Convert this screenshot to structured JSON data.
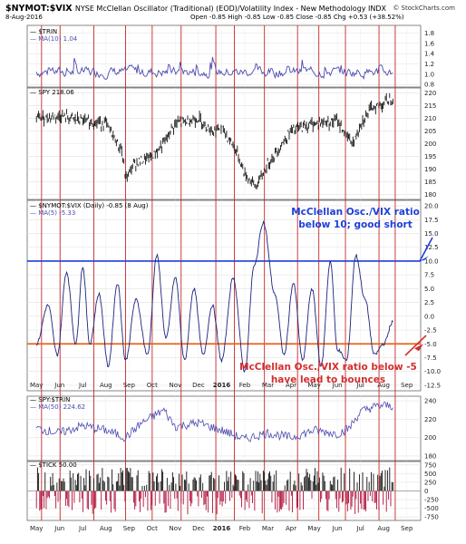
{
  "header": {
    "symbol": "$NYMOT:$VIX",
    "description": "NYSE McClellan Oscillator (Traditional) (EOD)/Volatility Index - New Methodology  INDX",
    "credit": "© StockCharts.com",
    "date": "8-Aug-2016",
    "ohlc": "Open -0.85  High -0.85  Low -0.85  Close -0.85  Chg +0.53 (+38.52%)"
  },
  "colors": {
    "price_line": "#1a237e",
    "ma_line": "#4b4bb0",
    "vline": "#c62828",
    "blue_level": "#1f3fd8",
    "orange_level": "#e8651b",
    "blue_text": "#1f3fd8",
    "red_text": "#d32f2f",
    "tick_pos": "#111111",
    "tick_neg": "#b0103a"
  },
  "x_axis_labels": [
    "May",
    "Jun",
    "Jul",
    "Aug",
    "Sep",
    "Oct",
    "Nov",
    "Dec",
    "2016",
    "Feb",
    "Mar",
    "Apr",
    "May",
    "Jun",
    "Jul",
    "Aug",
    "Sep"
  ],
  "vlines_month_index": [
    0.22,
    1.02,
    2.48,
    3.85,
    5.0,
    6.25,
    7.75,
    8.55,
    9.85,
    11.28,
    12.2,
    13.35,
    14.8,
    15.5
  ],
  "annotations": {
    "top": [
      "McClellan Osc./VIX ratio",
      "below 10; good short"
    ],
    "bottom": [
      "McClellan Osc./VIX ratio below -5",
      "have lead to bounces"
    ]
  },
  "chart_data": [
    {
      "type": "line",
      "legend": [
        "$TRIN",
        "MA(10) 1.04"
      ],
      "yticks": [
        "0.8",
        "1.0",
        "1.2",
        "1.4",
        "1.6",
        "1.8"
      ],
      "ylim": [
        0.75,
        1.95
      ],
      "ma_level": 1.04
    },
    {
      "type": "line",
      "legend": [
        "SPY 218.06"
      ],
      "yticks": [
        "180",
        "185",
        "190",
        "195",
        "200",
        "205",
        "210",
        "215",
        "220"
      ],
      "ylim": [
        178,
        222
      ],
      "x": [
        0,
        1,
        2,
        3,
        3.7,
        3.85,
        4.2,
        5,
        5.5,
        6,
        7,
        7.6,
        8,
        8.6,
        9,
        9.5,
        10,
        11,
        12,
        13,
        13.4,
        13.7,
        14,
        14.5,
        15,
        15.4
      ],
      "values": [
        210,
        211,
        209,
        208,
        197,
        186,
        192,
        195,
        200,
        208,
        210,
        205,
        206,
        198,
        188,
        183,
        192,
        205,
        208,
        209,
        203,
        200,
        208,
        214,
        216,
        218
      ]
    },
    {
      "type": "line",
      "legend": [
        "$NYMOT:$VIX (Daily) -0.85 (8 Aug)",
        "MA(5) -5.33"
      ],
      "yticks": [
        "20.0",
        "17.5",
        "15.0",
        "12.5",
        "10.0",
        "7.5",
        "5.0",
        "2.5",
        "0.0",
        "-2.5",
        "-5.0",
        "-7.5",
        "-10.0",
        "-12.5"
      ],
      "ylim": [
        -13.5,
        21
      ],
      "levels": [
        10,
        -5
      ],
      "x": [
        0,
        0.5,
        0.9,
        1.3,
        1.7,
        2.0,
        2.3,
        2.7,
        3.1,
        3.5,
        3.85,
        4.3,
        4.8,
        5.2,
        5.6,
        6.0,
        6.4,
        6.8,
        7.2,
        7.6,
        8.0,
        8.5,
        9.0,
        9.4,
        9.8,
        10.3,
        10.7,
        11.1,
        11.5,
        11.9,
        12.3,
        12.7,
        13.0,
        13.4,
        13.8,
        14.2,
        14.6,
        15.0,
        15.4
      ],
      "values": [
        -5,
        2,
        -7,
        8,
        -5,
        9,
        -5,
        4,
        -9,
        6,
        -8,
        3,
        -7,
        11,
        -4,
        7,
        -8,
        5,
        -7,
        2,
        -8,
        7,
        -10,
        9,
        17,
        4,
        -7,
        6,
        -8,
        5,
        -9,
        10,
        -6,
        -8,
        11,
        3,
        -7,
        -5,
        -1
      ]
    },
    {
      "type": "line",
      "legend": [
        "SPY:$TRIN",
        "MA(50) 224.62"
      ],
      "yticks": [
        "180",
        "200",
        "220",
        "240"
      ],
      "ylim": [
        175,
        245
      ],
      "x": [
        0,
        1,
        2,
        3,
        3.85,
        4.5,
        5.5,
        6,
        7,
        8,
        9,
        9.5,
        10,
        11,
        12,
        13,
        13.5,
        14,
        14.5,
        15,
        15.4
      ],
      "values": [
        210,
        205,
        213,
        208,
        200,
        215,
        230,
        212,
        216,
        208,
        198,
        202,
        205,
        200,
        208,
        204,
        210,
        228,
        233,
        235,
        234
      ]
    },
    {
      "type": "bar",
      "legend": [
        "$TICK 50.00"
      ],
      "yticks": [
        "750",
        "500",
        "250",
        "0",
        "-250",
        "-500",
        "-750"
      ],
      "ylim": [
        -850,
        850
      ]
    }
  ]
}
